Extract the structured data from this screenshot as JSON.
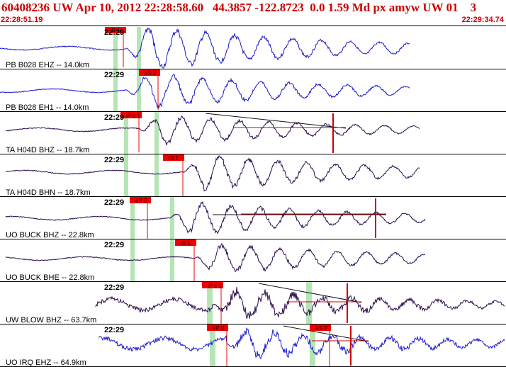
{
  "header": {
    "title": "60408236 UW Apr 10, 2012 22:28:58.60   44.3857 -122.8723  0.0 1.59 Md px amyw UW 01    3",
    "start_time": "22:28:51.19",
    "end_time": "22:29:34.74"
  },
  "colors": {
    "header_text": "#cc0000",
    "trace_blue": "#1a1acc",
    "trace_dark": "#2a0a4a",
    "pick_box": "#ee0000",
    "window_green": "#a8e0a8",
    "fit_line": "#cc0000",
    "divider": "#000000"
  },
  "traces": [
    {
      "station": "PB B028 EHZ -- 14.0km",
      "time_tick": "22:29",
      "color": "trace_blue",
      "picks": [
        {
          "label": "iP 1"
        }
      ],
      "has_coda_fit": false
    },
    {
      "station": "PB B028 EH1 -- 14.0km",
      "time_tick": "22:29",
      "color": "trace_blue",
      "picks": [
        {
          "label": "eS 2"
        }
      ],
      "has_coda_fit": false
    },
    {
      "station": "TA H04D BHZ -- 18.7km",
      "time_tick": "22:29",
      "color": "trace_dark",
      "picks": [
        {
          "label": "iP c 1"
        }
      ],
      "has_coda_fit": true
    },
    {
      "station": "TA H04D BHN -- 18.7km",
      "time_tick": "22:29",
      "color": "trace_dark",
      "picks": [
        {
          "label": "iS 1"
        }
      ],
      "has_coda_fit": false
    },
    {
      "station": "UO BUCK BHZ -- 22.8km",
      "time_tick": "22:29",
      "color": "trace_dark",
      "picks": [
        {
          "label": "eP 2"
        }
      ],
      "has_coda_fit": true
    },
    {
      "station": "UO BUCK BHE -- 22.8km",
      "time_tick": "22:29",
      "color": "trace_dark",
      "picks": [
        {
          "label": "iS 1"
        }
      ],
      "has_coda_fit": false
    },
    {
      "station": "UW BLOW BHZ -- 63.7km",
      "time_tick": "22:29",
      "color": "trace_dark",
      "picks": [
        {
          "label": "iP c 1"
        }
      ],
      "has_coda_fit": true
    },
    {
      "station": "UO IRQ EHZ -- 64.9km",
      "time_tick": "22:29",
      "color": "trace_blue",
      "picks": [
        {
          "label": "eP 2"
        },
        {
          "label": "eS 2"
        }
      ],
      "has_coda_fit": true
    }
  ]
}
